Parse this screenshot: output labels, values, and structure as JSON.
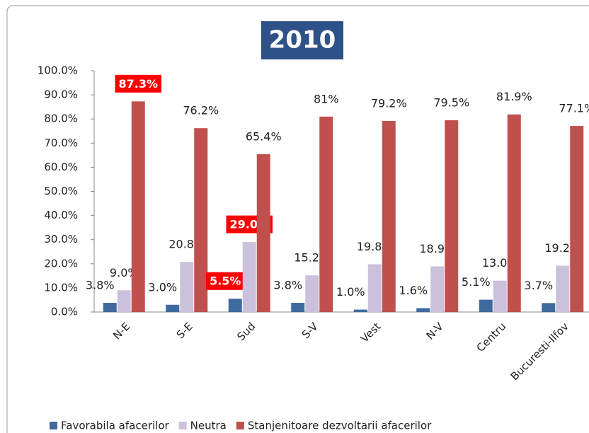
{
  "chart_data": {
    "type": "bar",
    "title": "2010",
    "categories": [
      "N-E",
      "S-E",
      "Sud",
      "S-V",
      "Vest",
      "N-V",
      "Centru",
      "Bucuresti-Ilfov"
    ],
    "series": [
      {
        "name": "Favorabila afacerilor",
        "color": "#3f6a9e",
        "values": [
          3.8,
          3.0,
          5.5,
          3.8,
          1.0,
          1.6,
          5.1,
          3.7
        ],
        "value_labels": [
          "3.8%",
          "3.0%",
          "5.5%",
          "3.8%",
          "1.0%",
          "1.6%",
          "5.1%",
          "3.7%"
        ],
        "highlight": [
          2
        ]
      },
      {
        "name": "Neutra",
        "color": "#ccc1dc",
        "values": [
          9.0,
          20.8,
          29.0,
          15.2,
          19.8,
          18.9,
          13.0,
          19.2
        ],
        "value_labels": [
          "9.0%",
          "20.8%",
          "29.0%",
          "15.2%",
          "19.8%",
          "18.9%",
          "13.0%",
          "19.2%"
        ],
        "highlight": [
          2
        ]
      },
      {
        "name": "Stanjenitoare dezvoltarii afacerilor",
        "color": "#c0504d",
        "values": [
          87.3,
          76.2,
          65.4,
          81,
          79.2,
          79.5,
          81.9,
          77.1
        ],
        "value_labels": [
          "87.3%",
          "76.2%",
          "65.4%",
          "81%",
          "79.2%",
          "79.5%",
          "81.9%",
          "77.1%"
        ],
        "highlight": [
          0
        ]
      }
    ],
    "ylim": [
      0,
      100
    ],
    "yticks": [
      {
        "value": 0,
        "label": "0.0%"
      },
      {
        "value": 10,
        "label": "10.0%"
      },
      {
        "value": 20,
        "label": "20.0%"
      },
      {
        "value": 30,
        "label": "30.0%"
      },
      {
        "value": 40,
        "label": "40.0%"
      },
      {
        "value": 50,
        "label": "50.0%"
      },
      {
        "value": 60,
        "label": "60.0%"
      },
      {
        "value": 70,
        "label": "70.0%"
      },
      {
        "value": 80,
        "label": "80.0%"
      },
      {
        "value": 90,
        "label": "90.0%"
      },
      {
        "value": 100,
        "label": "100.0%"
      }
    ],
    "legend": "bottom"
  }
}
